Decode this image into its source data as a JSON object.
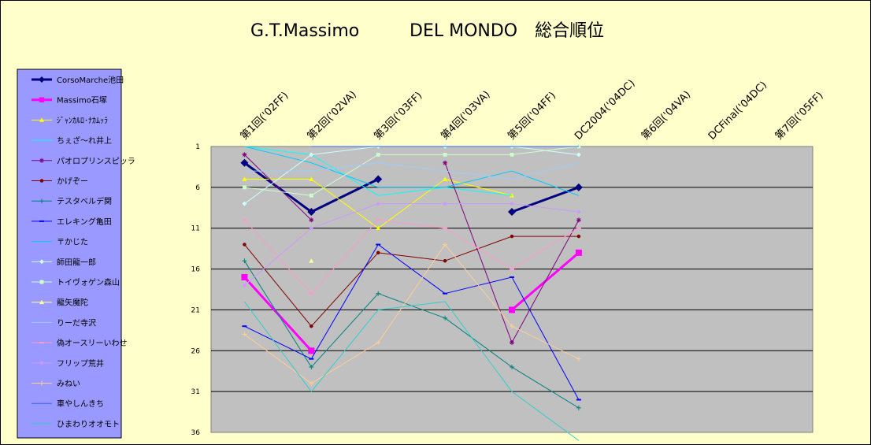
{
  "chart_data": {
    "type": "line",
    "title_left": "G.T.Massimo",
    "title_right": "DEL MONDO　総合順位",
    "categories": [
      "第1回('02FF)",
      "第2回('02VA)",
      "第3回('03FF)",
      "第4回('03VA)",
      "第5回('04FF)",
      "DC2004('04DC)",
      "第6回('04VA)",
      "DCFinal('04DC)",
      "第7回('05FF)"
    ],
    "y_ticks": [
      1,
      6,
      11,
      16,
      21,
      26,
      31,
      36
    ],
    "ylim": [
      1,
      36
    ],
    "y_reversed": true,
    "grid": true,
    "legend_position": "left",
    "plot_bg": "#c0c0c0",
    "page_bg": "#ffffcc",
    "legend_bg": "#9999ff",
    "series": [
      {
        "name": "CorsoMarche池田",
        "color": "#000080",
        "marker": "diamond",
        "width": 3,
        "values": [
          3,
          9,
          5,
          null,
          9,
          6,
          null,
          null,
          null
        ]
      },
      {
        "name": "Massimo石塚",
        "color": "#ff00ff",
        "marker": "square",
        "width": 3,
        "values": [
          17,
          26,
          null,
          null,
          21,
          14,
          null,
          null,
          null
        ]
      },
      {
        "name": "ｼﾞｬﾝｶﾙﾛ･ﾅｶﾑｯﾗ",
        "color": "#ffff00",
        "marker": "triangle",
        "width": 1,
        "values": [
          5,
          5,
          11,
          5,
          7,
          null,
          null,
          null,
          null
        ]
      },
      {
        "name": "ちぇざ〜れ井上",
        "color": "#00ffff",
        "marker": "none",
        "width": 1,
        "values": [
          1,
          2,
          7,
          6,
          7,
          null,
          null,
          null,
          null
        ]
      },
      {
        "name": "パオロプリンスピッラ",
        "color": "#800080",
        "marker": "star",
        "width": 1,
        "values": [
          2,
          10,
          null,
          3,
          25,
          10,
          null,
          null,
          null
        ]
      },
      {
        "name": "かげぞー",
        "color": "#800000",
        "marker": "circle",
        "width": 1,
        "values": [
          13,
          23,
          14,
          15,
          12,
          12,
          null,
          null,
          null
        ]
      },
      {
        "name": "テスタベルデ関",
        "color": "#008080",
        "marker": "plus",
        "width": 1,
        "values": [
          15,
          28,
          19,
          22,
          28,
          33,
          null,
          null,
          null
        ]
      },
      {
        "name": "エレキング亀田",
        "color": "#0000ff",
        "marker": "dash",
        "width": 1,
        "values": [
          23,
          27,
          13,
          19,
          17,
          32,
          null,
          null,
          null
        ]
      },
      {
        "name": "〒かじた",
        "color": "#00ccff",
        "marker": "none",
        "width": 1,
        "values": [
          1,
          3,
          6,
          6,
          4,
          7,
          null,
          null,
          null
        ]
      },
      {
        "name": "師田龍一郎",
        "color": "#ccffff",
        "marker": "diamond",
        "width": 1,
        "values": [
          8,
          2,
          1,
          1,
          1,
          2,
          null,
          null,
          null
        ]
      },
      {
        "name": "トイヴォゲン森山",
        "color": "#ccffcc",
        "marker": "square",
        "width": 1,
        "values": [
          6,
          7,
          2,
          2,
          2,
          1,
          null,
          null,
          null
        ]
      },
      {
        "name": "龍矢魔陀",
        "color": "#ffff99",
        "marker": "triangle",
        "width": 1,
        "values": [
          null,
          15,
          null,
          null,
          null,
          null,
          null,
          null,
          null
        ]
      },
      {
        "name": "りーだ寺沢",
        "color": "#99ccff",
        "marker": "none",
        "width": 1,
        "values": [
          4,
          4,
          3,
          4,
          5,
          3,
          null,
          null,
          null
        ]
      },
      {
        "name": "偽オースリーいわせ",
        "color": "#ff99cc",
        "marker": "dash",
        "width": 1,
        "values": [
          10,
          19,
          10,
          11,
          16,
          11,
          null,
          null,
          null
        ]
      },
      {
        "name": "フリップ荒井",
        "color": "#cc99ff",
        "marker": "circle",
        "width": 1,
        "values": [
          18,
          11,
          8,
          8,
          8,
          9,
          null,
          null,
          null
        ]
      },
      {
        "name": "みねい",
        "color": "#ffcc99",
        "marker": "plus",
        "width": 1,
        "values": [
          24,
          30,
          25,
          13,
          23,
          27,
          null,
          null,
          null
        ]
      },
      {
        "name": "車やしんきち",
        "color": "#3366ff",
        "marker": "none",
        "width": 1,
        "values": [
          null,
          1,
          1,
          1,
          1,
          1,
          null,
          null,
          null
        ]
      },
      {
        "name": "ひまわりオオモト",
        "color": "#33cccc",
        "marker": "none",
        "width": 1,
        "values": [
          20,
          31,
          21,
          20,
          31,
          37,
          null,
          null,
          null
        ]
      }
    ]
  }
}
